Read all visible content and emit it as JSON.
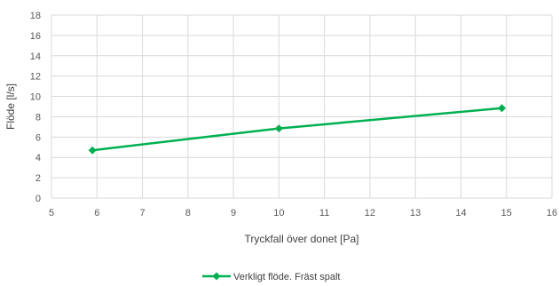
{
  "chart_data": {
    "type": "scatter",
    "xlabel": "Tryckfall över donet [Pa]",
    "ylabel": "Flöde [l/s]",
    "xlim": [
      5,
      16
    ],
    "ylim": [
      0,
      18
    ],
    "xticks": [
      "5",
      "6",
      "7",
      "8",
      "9",
      "10",
      "11",
      "12",
      "13",
      "14",
      "15",
      "16"
    ],
    "yticks": [
      "0",
      "2",
      "4",
      "6",
      "8",
      "10",
      "12",
      "14",
      "16",
      "18"
    ],
    "grid": true,
    "legend_position": "bottom-center",
    "series": [
      {
        "name": "Verkligt flöde. Fräst spalt",
        "color": "#00b050",
        "marker": "diamond",
        "x": [
          5.9,
          10.0,
          14.9
        ],
        "y": [
          4.7,
          6.85,
          8.85
        ]
      }
    ]
  }
}
